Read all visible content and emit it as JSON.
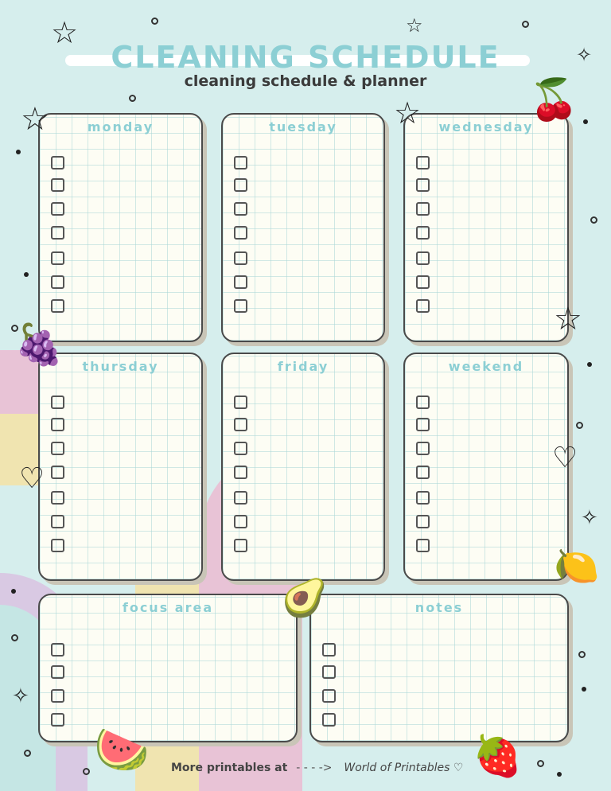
{
  "header": {
    "title": "Cleaning Schedule",
    "subtitle": "cleaning schedule & planner"
  },
  "cards": [
    {
      "label": "monday",
      "checkboxes": 7
    },
    {
      "label": "tuesday",
      "checkboxes": 7
    },
    {
      "label": "wednesday",
      "checkboxes": 7
    },
    {
      "label": "thursday",
      "checkboxes": 7
    },
    {
      "label": "friday",
      "checkboxes": 7
    },
    {
      "label": "weekend",
      "checkboxes": 7
    },
    {
      "label": "focus area",
      "checkboxes": 4
    },
    {
      "label": "notes",
      "checkboxes": 4
    }
  ],
  "footer": {
    "prefix": "More printables at",
    "arrow": "- - - ->",
    "brand": "World of Printables ♡"
  },
  "colors": {
    "background": "#d6eeed",
    "accent": "#8ccfd4",
    "card": "#fdfdf4",
    "pastel_pink": "#e8c3d6",
    "pastel_yellow": "#f0e4b0",
    "pastel_purple": "#d9c9e3"
  },
  "decorations": [
    "star-icon",
    "heart-icon",
    "cherry-icon",
    "grapes-icon",
    "avocado-icon",
    "orange-slice-icon",
    "watermelon-icon",
    "strawberry-icon",
    "sparkle-icon"
  ]
}
